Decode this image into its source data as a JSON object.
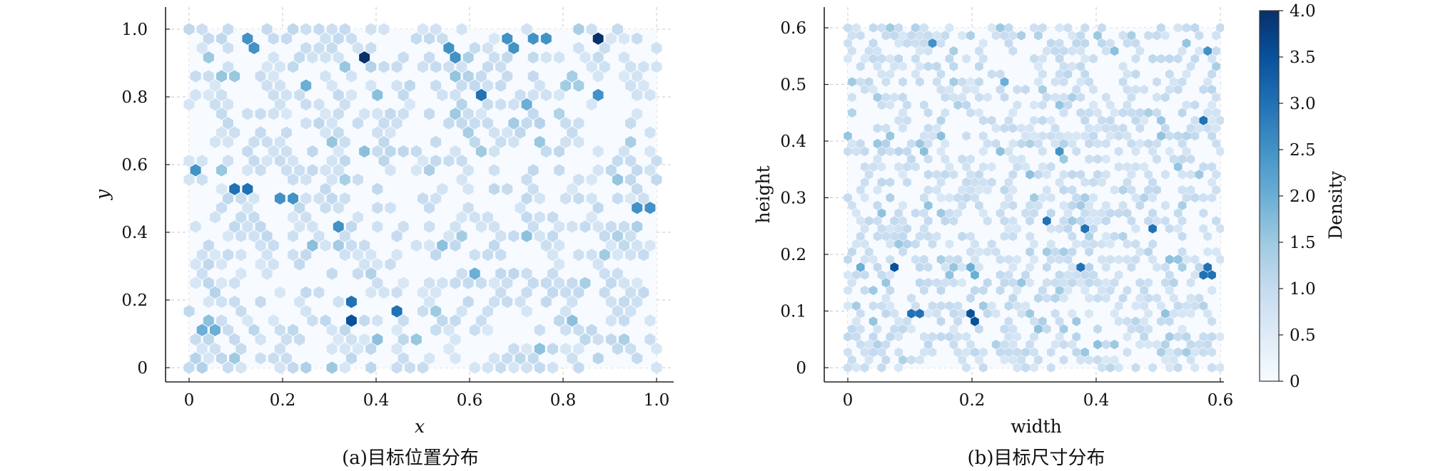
{
  "chart_data": [
    {
      "type": "heatmap",
      "subtype": "hexbin",
      "caption": "(a)目标位置分布",
      "xlabel": "x",
      "ylabel": "y",
      "xlim": [
        -0.05,
        1.05
      ],
      "ylim": [
        -0.05,
        1.05
      ],
      "xticks": [
        0,
        0.2,
        0.4,
        0.6,
        0.8,
        1.0
      ],
      "xtick_labels": [
        "0",
        "0.2",
        "0.4",
        "0.6",
        "0.8",
        "1.0"
      ],
      "yticks": [
        0,
        0.2,
        0.4,
        0.6,
        0.8,
        1.0
      ],
      "ytick_labels": [
        "0",
        "0.2",
        "0.4",
        "0.6",
        "0.8",
        "1.0"
      ],
      "grid": true,
      "hex_grid": {
        "nx": 36,
        "ny": 36,
        "x_range": [
          0,
          1
        ],
        "y_range": [
          0,
          1
        ]
      },
      "dense_cells": [
        {
          "x": 0.87,
          "y": 0.98,
          "density": 4.0
        },
        {
          "x": 0.37,
          "y": 0.91,
          "density": 4.0
        },
        {
          "x": 0.35,
          "y": 0.14,
          "density": 3.5
        },
        {
          "x": 0.11,
          "y": 0.52,
          "density": 3.0
        },
        {
          "x": 0.63,
          "y": 0.8,
          "density": 3.0
        },
        {
          "x": 0.45,
          "y": 0.16,
          "density": 3.0
        },
        {
          "x": 0.34,
          "y": 0.2,
          "density": 3.0
        },
        {
          "x": 0.13,
          "y": 0.96,
          "density": 2.5
        },
        {
          "x": 0.75,
          "y": 0.98,
          "density": 2.5
        },
        {
          "x": 0.77,
          "y": 0.98,
          "density": 2.5
        },
        {
          "x": 0.69,
          "y": 0.96,
          "density": 2.5
        },
        {
          "x": 0.88,
          "y": 0.8,
          "density": 2.5
        },
        {
          "x": 0.31,
          "y": 0.41,
          "density": 2.5
        },
        {
          "x": 0.01,
          "y": 0.59,
          "density": 2.5
        },
        {
          "x": 0.97,
          "y": 0.48,
          "density": 2.5
        },
        {
          "x": 0.21,
          "y": 0.51,
          "density": 2.5
        },
        {
          "x": 0.56,
          "y": 0.93,
          "density": 2.5
        },
        {
          "x": 0.24,
          "y": 0.84,
          "density": 2.0
        },
        {
          "x": 0.72,
          "y": 0.77,
          "density": 2.0
        },
        {
          "x": 0.61,
          "y": 0.28,
          "density": 2.0
        },
        {
          "x": 0.04,
          "y": 0.12,
          "density": 2.0
        }
      ],
      "density_note": "Remaining cells light blue (~0.5-1.0) scattered over the unit square"
    },
    {
      "type": "heatmap",
      "subtype": "hexbin",
      "caption": "(b)目标尺寸分布",
      "xlabel": "width",
      "ylabel": "height",
      "xlim": [
        -0.03,
        0.63
      ],
      "ylim": [
        -0.03,
        0.63
      ],
      "xticks": [
        0,
        0.2,
        0.4,
        0.6
      ],
      "xtick_labels": [
        "0",
        "0.2",
        "0.4",
        "0.6"
      ],
      "yticks": [
        0,
        0.1,
        0.2,
        0.3,
        0.4,
        0.5,
        0.6
      ],
      "ytick_labels": [
        "0",
        "0.1",
        "0.2",
        "0.3",
        "0.4",
        "0.5",
        "0.6"
      ],
      "grid": true,
      "hex_grid": {
        "nx": 44,
        "ny": 44,
        "x_range": [
          0,
          0.6
        ],
        "y_range": [
          0,
          0.6
        ]
      },
      "dense_cells": [
        {
          "x": 0.08,
          "y": 0.18,
          "density": 3.5
        },
        {
          "x": 0.2,
          "y": 0.09,
          "density": 3.5
        },
        {
          "x": 0.57,
          "y": 0.44,
          "density": 3.0
        },
        {
          "x": 0.58,
          "y": 0.18,
          "density": 3.0
        },
        {
          "x": 0.58,
          "y": 0.16,
          "density": 3.0
        },
        {
          "x": 0.49,
          "y": 0.25,
          "density": 3.0
        },
        {
          "x": 0.37,
          "y": 0.18,
          "density": 3.0
        },
        {
          "x": 0.32,
          "y": 0.26,
          "density": 3.0
        },
        {
          "x": 0.38,
          "y": 0.25,
          "density": 3.0
        },
        {
          "x": 0.11,
          "y": 0.1,
          "density": 3.0
        },
        {
          "x": 0.14,
          "y": 0.57,
          "density": 2.5
        },
        {
          "x": 0.34,
          "y": 0.38,
          "density": 2.5
        },
        {
          "x": 0.58,
          "y": 0.56,
          "density": 2.5
        },
        {
          "x": 0.02,
          "y": 0.18,
          "density": 2.0
        },
        {
          "x": 0.25,
          "y": 0.5,
          "density": 2.0
        },
        {
          "x": 0.2,
          "y": 0.17,
          "density": 2.0
        }
      ],
      "density_note": "Remaining cells light blue (~0.5-1.0) scattered over [0,0.6]x[0,0.6]"
    }
  ],
  "colorbar": {
    "label": "Density",
    "range": [
      0,
      4.0
    ],
    "ticks": [
      0,
      0.5,
      1.0,
      1.5,
      2.0,
      2.5,
      3.0,
      3.5,
      4.0
    ],
    "tick_labels": [
      "0",
      "0.5",
      "1.0",
      "1.5",
      "2.0",
      "2.5",
      "3.0",
      "3.5",
      "4.0"
    ],
    "colormap": "Blues",
    "colors": [
      "#f7fbff",
      "#deebf7",
      "#c6dbef",
      "#9ecae1",
      "#6baed6",
      "#4292c6",
      "#2171b5",
      "#08519c",
      "#08306b"
    ]
  }
}
